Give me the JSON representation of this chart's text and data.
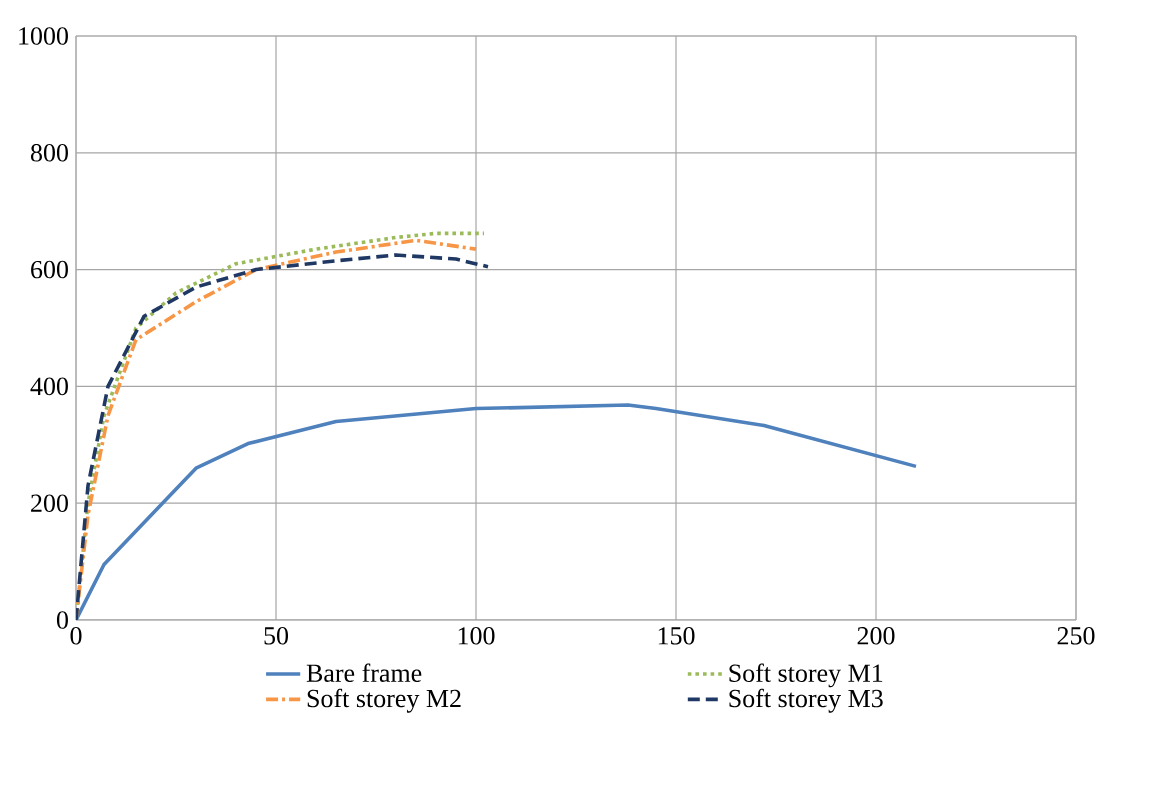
{
  "chart_data": {
    "type": "line",
    "xlim": [
      0,
      250
    ],
    "ylim": [
      0,
      1000
    ],
    "xticks": [
      0,
      50,
      100,
      150,
      200,
      250
    ],
    "yticks": [
      0,
      200,
      400,
      600,
      800,
      1000
    ],
    "grid": true,
    "legend": "bottom",
    "series": [
      {
        "name": "Bare frame",
        "color": "#4f81bd",
        "line_style": "solid",
        "x": [
          0,
          7,
          30,
          43,
          65,
          100,
          138,
          145,
          172,
          210
        ],
        "values": [
          0,
          95,
          260,
          302,
          340,
          362,
          368,
          362,
          333,
          263
        ]
      },
      {
        "name": "Soft storey M1",
        "color": "#9bbb59",
        "line_style": "dotted",
        "x": [
          0,
          3,
          7,
          15,
          25,
          40,
          60,
          80,
          90,
          102
        ],
        "values": [
          0,
          200,
          350,
          500,
          560,
          610,
          635,
          655,
          662,
          662
        ]
      },
      {
        "name": "Soft storey M2",
        "color": "#f79646",
        "line_style": "dashdot",
        "x": [
          0,
          3,
          8,
          15,
          30,
          45,
          65,
          85,
          100
        ],
        "values": [
          0,
          180,
          350,
          480,
          545,
          600,
          630,
          650,
          635
        ]
      },
      {
        "name": "Soft storey M3",
        "color": "#1f3864",
        "line_style": "dashed",
        "x": [
          0,
          3,
          8,
          17,
          30,
          45,
          65,
          80,
          95,
          103
        ],
        "values": [
          0,
          230,
          400,
          520,
          570,
          600,
          615,
          625,
          618,
          605
        ]
      }
    ]
  }
}
